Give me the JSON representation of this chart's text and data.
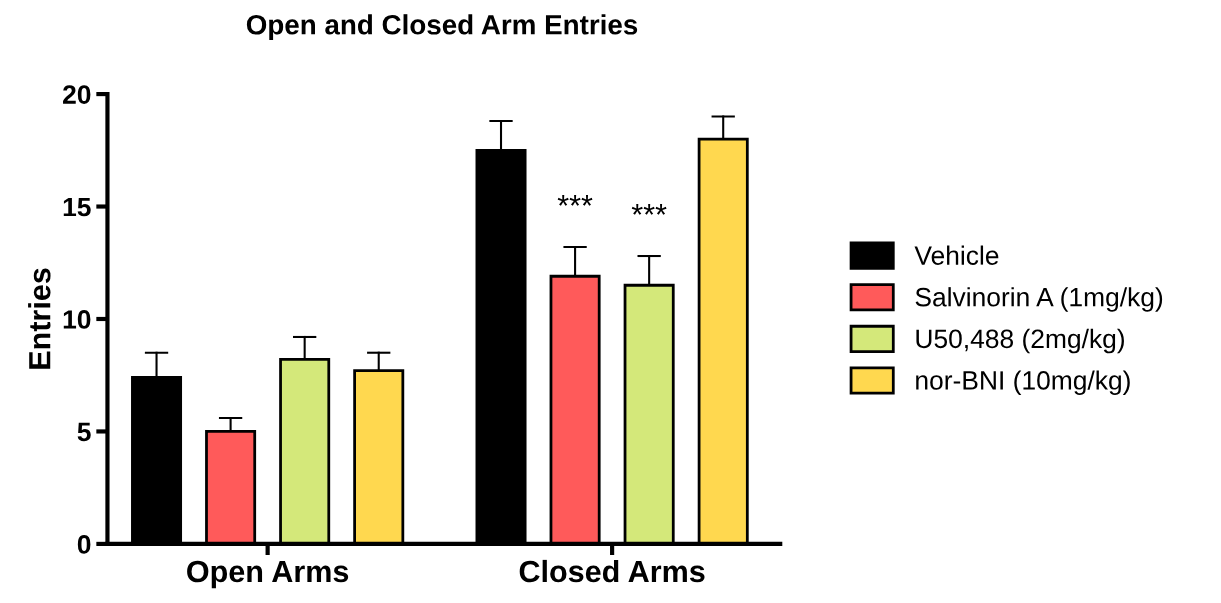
{
  "chart_data": {
    "type": "bar",
    "title": "Open and Closed Arm Entries",
    "ylabel": "Entries",
    "categories": [
      "Open Arms",
      "Closed Arms"
    ],
    "series": [
      {
        "name": "Vehicle",
        "color": "#000000",
        "values": [
          7.4,
          17.5
        ],
        "errors": [
          [
            7.4,
            8.5
          ],
          [
            17.5,
            18.8
          ]
        ]
      },
      {
        "name": "Salvinorin A (1mg/kg)",
        "color": "#ff5a5a",
        "values": [
          5.0,
          11.9
        ],
        "errors": [
          [
            5.0,
            5.6
          ],
          [
            11.9,
            13.2
          ]
        ]
      },
      {
        "name": "U50,488 (2mg/kg)",
        "color": "#d4e87a",
        "values": [
          8.2,
          11.5
        ],
        "errors": [
          [
            8.2,
            9.2
          ],
          [
            11.5,
            12.8
          ]
        ]
      },
      {
        "name": "nor-BNI (10mg/kg)",
        "color": "#ffd84f",
        "values": [
          7.7,
          18.0
        ],
        "errors": [
          [
            7.7,
            8.5
          ],
          [
            18.0,
            19.0
          ]
        ]
      }
    ],
    "ylim": [
      0,
      20
    ],
    "yticks": [
      0,
      5,
      10,
      15,
      20
    ],
    "grid": false,
    "legend": "right",
    "annotations": [
      "***",
      "***"
    ]
  }
}
